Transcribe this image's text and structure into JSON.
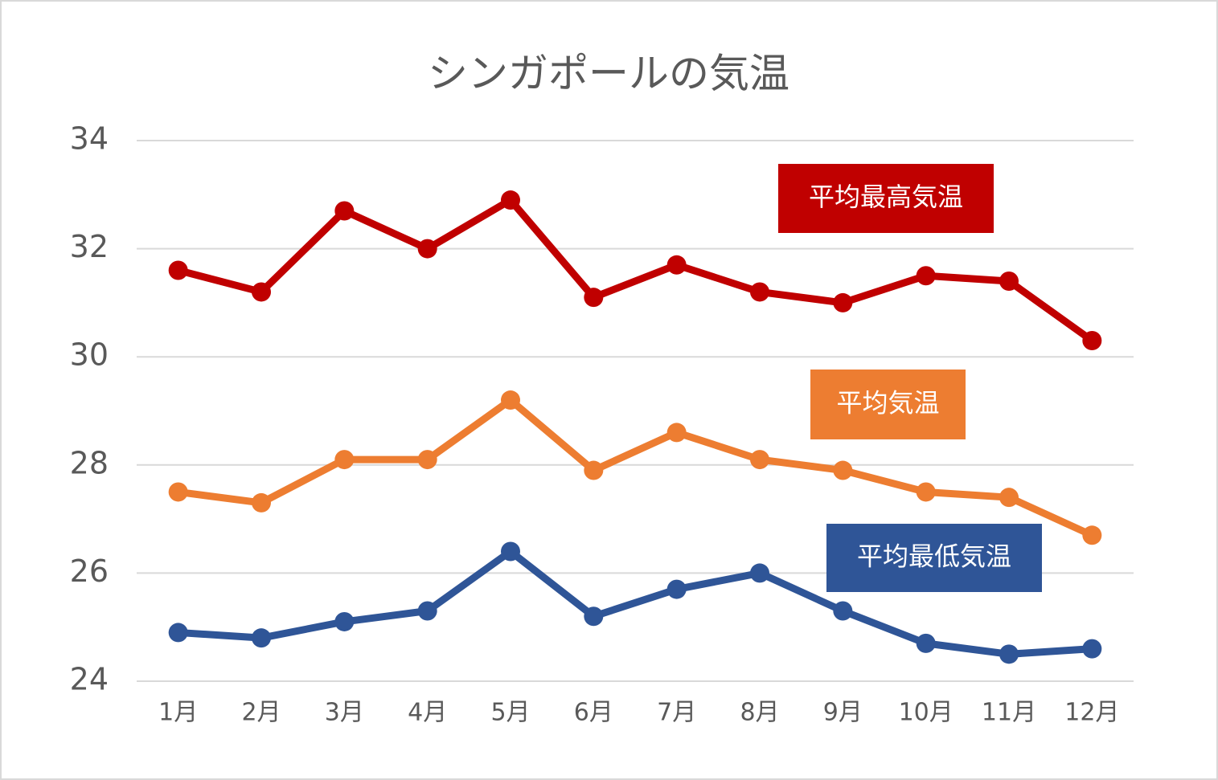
{
  "chart_data": {
    "type": "line",
    "title": "シンガポールの気温",
    "categories": [
      "1月",
      "2月",
      "3月",
      "4月",
      "5月",
      "6月",
      "7月",
      "8月",
      "9月",
      "10月",
      "11月",
      "12月"
    ],
    "series": [
      {
        "name": "平均最高気温",
        "color": "#c00000",
        "values": [
          31.6,
          31.2,
          32.7,
          32.0,
          32.9,
          31.1,
          31.7,
          31.2,
          31.0,
          31.5,
          31.4,
          30.3
        ]
      },
      {
        "name": "平均気温",
        "color": "#ed7d31",
        "values": [
          27.5,
          27.3,
          28.1,
          28.1,
          29.2,
          27.9,
          28.6,
          28.1,
          27.9,
          27.5,
          27.4,
          26.7
        ]
      },
      {
        "name": "平均最低気温",
        "color": "#2f5597",
        "values": [
          24.9,
          24.8,
          25.1,
          25.3,
          26.4,
          25.2,
          25.7,
          26.0,
          25.3,
          24.7,
          24.5,
          24.6
        ]
      }
    ],
    "ylim": [
      24,
      34
    ],
    "yticks": [
      24,
      26,
      28,
      30,
      32,
      34
    ],
    "grid": true
  }
}
